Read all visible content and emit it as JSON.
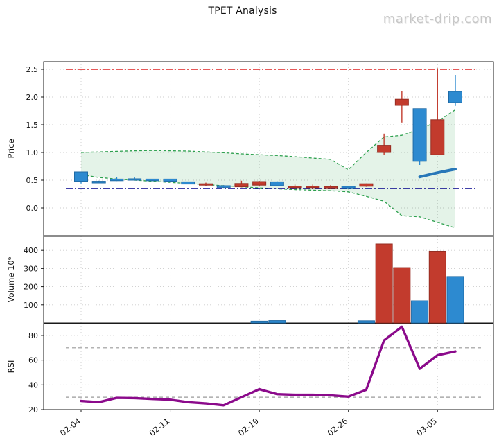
{
  "title": "TPET Analysis",
  "watermark": "market-drip.com",
  "colors": {
    "up": "#2d8ad0",
    "up_edge": "#1f6aa5",
    "down": "#c23b2d",
    "down_edge": "#962d22",
    "sma": "#2877b8",
    "band": "#2da04e",
    "band_fill": "rgba(45,160,78,0.13)",
    "resistance": "#dd2222",
    "support": "#00008b",
    "rsi": "#8b0a8b",
    "rsi_ref": "#9a9a9a",
    "grid": "#cccccc",
    "spine": "#1a1a1a",
    "tick_text": "#111111"
  },
  "x_axis": {
    "n_points": 22,
    "tick_indices": [
      0,
      5,
      10,
      15,
      20
    ],
    "tick_labels": [
      "02-04",
      "02-11",
      "02-19",
      "02-26",
      "03-05"
    ]
  },
  "chart_data": [
    {
      "type": "candlestick",
      "panel": "price",
      "ylabel": "Price",
      "ylim": [
        -0.5,
        2.6375
      ],
      "yticks": [
        0.0,
        0.5,
        1.0,
        1.5,
        2.0,
        2.5
      ],
      "ytick_labels": [
        "0.0",
        "0.5",
        "1.0",
        "1.5",
        "2.0",
        "2.5"
      ],
      "candles": [
        {
          "o": 0.48,
          "h": 0.655,
          "l": 0.44,
          "c": 0.65,
          "dir": "up"
        },
        {
          "o": 0.45,
          "h": 0.49,
          "l": 0.445,
          "c": 0.48,
          "dir": "up"
        },
        {
          "o": 0.49,
          "h": 0.555,
          "l": 0.485,
          "c": 0.52,
          "dir": "up"
        },
        {
          "o": 0.505,
          "h": 0.55,
          "l": 0.5,
          "c": 0.525,
          "dir": "up"
        },
        {
          "o": 0.49,
          "h": 0.525,
          "l": 0.48,
          "c": 0.52,
          "dir": "up"
        },
        {
          "o": 0.48,
          "h": 0.525,
          "l": 0.47,
          "c": 0.52,
          "dir": "up"
        },
        {
          "o": 0.43,
          "h": 0.475,
          "l": 0.425,
          "c": 0.47,
          "dir": "up"
        },
        {
          "o": 0.435,
          "h": 0.455,
          "l": 0.39,
          "c": 0.41,
          "dir": "down"
        },
        {
          "o": 0.37,
          "h": 0.41,
          "l": 0.36,
          "c": 0.4,
          "dir": "up"
        },
        {
          "o": 0.44,
          "h": 0.49,
          "l": 0.37,
          "c": 0.38,
          "dir": "down"
        },
        {
          "o": 0.475,
          "h": 0.485,
          "l": 0.4,
          "c": 0.41,
          "dir": "down"
        },
        {
          "o": 0.4,
          "h": 0.48,
          "l": 0.39,
          "c": 0.47,
          "dir": "up"
        },
        {
          "o": 0.39,
          "h": 0.42,
          "l": 0.34,
          "c": 0.365,
          "dir": "down"
        },
        {
          "o": 0.39,
          "h": 0.42,
          "l": 0.35,
          "c": 0.37,
          "dir": "down"
        },
        {
          "o": 0.385,
          "h": 0.41,
          "l": 0.35,
          "c": 0.37,
          "dir": "down"
        },
        {
          "o": 0.36,
          "h": 0.4,
          "l": 0.35,
          "c": 0.39,
          "dir": "up"
        },
        {
          "o": 0.435,
          "h": 0.44,
          "l": 0.38,
          "c": 0.39,
          "dir": "down"
        },
        {
          "o": 1.13,
          "h": 1.34,
          "l": 0.96,
          "c": 1.0,
          "dir": "down"
        },
        {
          "o": 1.96,
          "h": 2.1,
          "l": 1.54,
          "c": 1.85,
          "dir": "down"
        },
        {
          "o": 0.84,
          "h": 1.79,
          "l": 0.775,
          "c": 1.79,
          "dir": "up"
        },
        {
          "o": 1.59,
          "h": 2.52,
          "l": 0.96,
          "c": 0.96,
          "dir": "down"
        },
        {
          "o": 1.9,
          "h": 2.4,
          "l": 1.84,
          "c": 2.1,
          "dir": "up"
        }
      ],
      "bollinger_upper": [
        1.0,
        1.01,
        1.02,
        1.03,
        1.035,
        1.03,
        1.025,
        1.01,
        0.995,
        0.975,
        0.96,
        0.945,
        0.925,
        0.9,
        0.875,
        0.69,
        1.0,
        1.28,
        1.31,
        1.42,
        1.56,
        1.77
      ],
      "bollinger_lower": [
        0.6,
        0.55,
        0.52,
        0.5,
        0.48,
        0.46,
        0.44,
        0.42,
        0.4,
        0.38,
        0.36,
        0.345,
        0.33,
        0.32,
        0.31,
        0.29,
        0.21,
        0.12,
        -0.14,
        -0.16,
        -0.26,
        -0.36
      ],
      "sma": {
        "start_index": 19,
        "values": [
          0.56,
          0.635,
          0.7
        ]
      },
      "hlines": [
        {
          "y": 2.5,
          "color_key": "resistance"
        },
        {
          "y": 0.35,
          "color_key": "support"
        }
      ]
    },
    {
      "type": "bar",
      "panel": "volume",
      "ylabel": "Volume  10⁶",
      "ylim": [
        0,
        477
      ],
      "yticks": [
        100,
        200,
        300,
        400
      ],
      "ytick_labels": [
        "100",
        "200",
        "300",
        "400"
      ],
      "values": [
        0,
        0,
        0,
        0,
        0,
        0,
        0,
        0,
        0,
        0,
        10,
        13,
        0,
        0,
        0,
        0,
        12,
        435,
        305,
        122,
        395,
        256
      ],
      "bar_dirs": [
        "up",
        "up",
        "up",
        "up",
        "up",
        "up",
        "up",
        "up",
        "up",
        "up",
        "up",
        "up",
        "up",
        "up",
        "up",
        "up",
        "up",
        "down",
        "down",
        "up",
        "down",
        "up"
      ]
    },
    {
      "type": "line",
      "panel": "rsi",
      "ylabel": "RSI",
      "ylim": [
        20,
        89.5
      ],
      "yticks": [
        20,
        40,
        60,
        80
      ],
      "ytick_labels": [
        "20",
        "40",
        "60",
        "80"
      ],
      "values": [
        27,
        26,
        29.5,
        29.3,
        28.6,
        28,
        26,
        25,
        23.5,
        30,
        36.5,
        32.5,
        32,
        32,
        31.5,
        30.5,
        36,
        76,
        87,
        53,
        64,
        67
      ],
      "ref_lines": [
        30,
        70
      ]
    }
  ]
}
